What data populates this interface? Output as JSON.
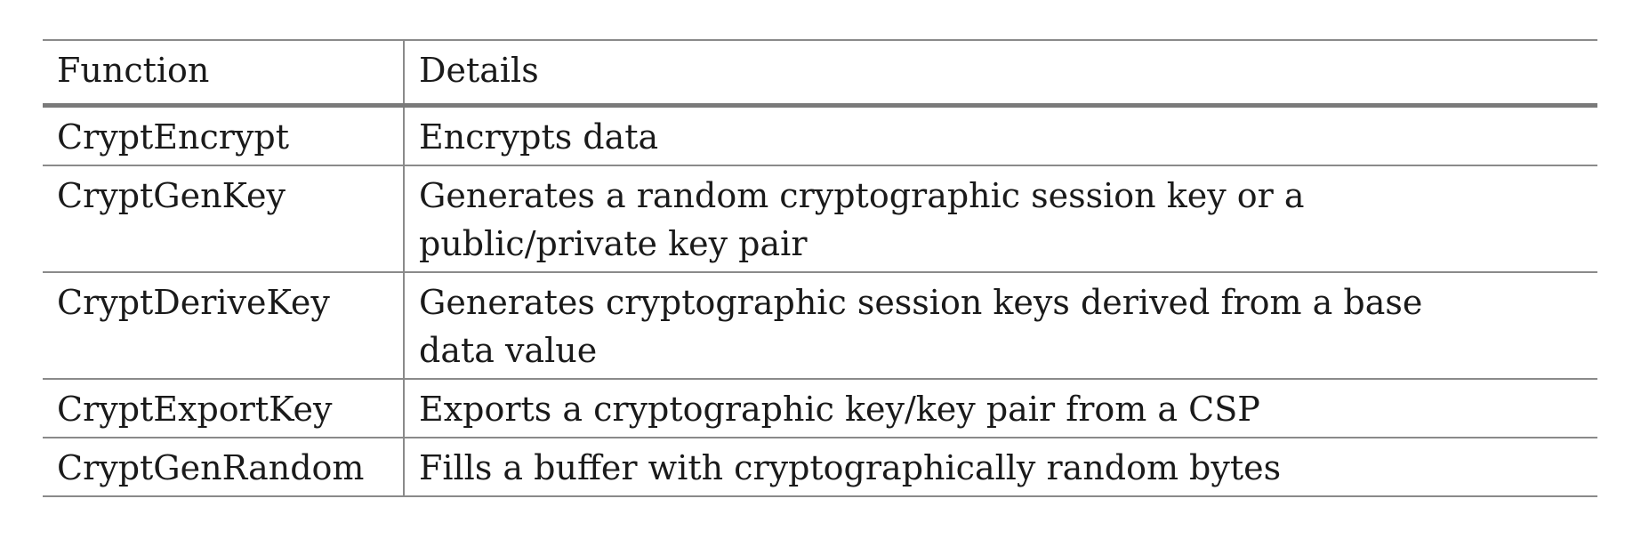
{
  "table": {
    "headers": {
      "function": "Function",
      "details": "Details"
    },
    "rows": [
      {
        "function": "CryptEncrypt",
        "details": "Encrypts data"
      },
      {
        "function": "CryptGenKey",
        "details": "Generates a random cryptographic session key or a public/private key pair"
      },
      {
        "function": "CryptDeriveKey",
        "details": "Generates cryptographic session keys derived from a base data value"
      },
      {
        "function": "CryptExportKey",
        "details": "Exports a cryptographic key/key pair from a CSP"
      },
      {
        "function": "CryptGenRandom",
        "details": "Fills a buffer with cryptographically random bytes"
      }
    ]
  }
}
